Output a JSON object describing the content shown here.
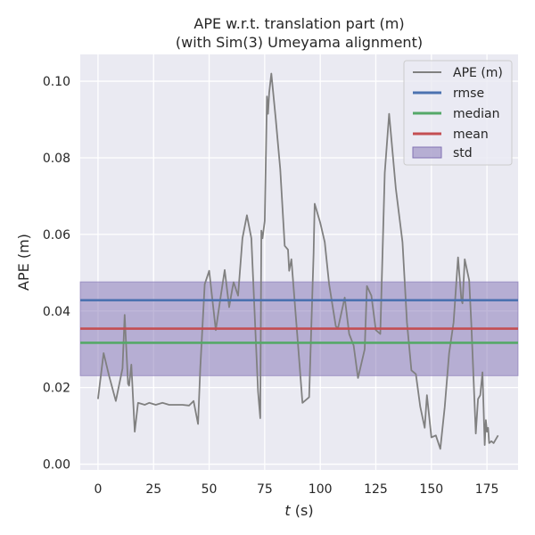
{
  "chart_data": {
    "type": "line",
    "title": [
      "APE w.r.t. translation part (m)",
      "(with Sim(3) Umeyama alignment)"
    ],
    "xlabel_var": "t",
    "xlabel_unit": " (s)",
    "ylabel": "APE (m)",
    "xlim": [
      -8,
      189
    ],
    "ylim": [
      -0.0015,
      0.107
    ],
    "xticks": [
      0,
      25,
      50,
      75,
      100,
      125,
      150,
      175
    ],
    "xtick_labels": [
      "0",
      "25",
      "50",
      "75",
      "100",
      "125",
      "150",
      "175"
    ],
    "yticks": [
      0.0,
      0.02,
      0.04,
      0.06,
      0.08,
      0.1
    ],
    "ytick_labels": [
      "0.00",
      "0.02",
      "0.04",
      "0.06",
      "0.08",
      "0.10"
    ],
    "grid": true,
    "legend_position": "top-right",
    "series": [
      {
        "name": "APE (m)",
        "color": "#808080",
        "x": [
          0,
          2.5,
          5,
          8,
          11,
          12,
          13.5,
          14,
          15,
          16.5,
          18,
          21,
          23,
          26,
          29,
          32,
          35,
          38,
          41,
          43,
          45,
          46,
          48,
          50,
          53,
          55,
          57,
          59,
          60.5,
          61,
          63,
          65,
          67,
          69,
          72,
          73,
          73.5,
          74,
          75,
          76,
          76.5,
          77,
          78,
          80,
          82,
          84,
          85.5,
          86,
          87,
          90,
          92,
          95,
          97,
          97.5,
          100,
          102,
          104,
          107,
          108,
          111,
          113,
          115,
          117,
          120,
          121,
          123,
          125,
          127,
          129,
          131,
          134,
          137,
          139,
          141,
          143,
          145,
          147,
          148,
          150,
          152,
          154,
          156,
          158,
          160,
          162,
          163.5,
          164,
          165,
          167,
          168,
          170,
          171,
          172,
          173,
          174,
          174.5,
          175,
          175.5,
          176,
          177,
          178,
          179,
          180
        ],
        "values": [
          0.017,
          0.029,
          0.023,
          0.0165,
          0.025,
          0.039,
          0.021,
          0.0205,
          0.026,
          0.0085,
          0.016,
          0.0155,
          0.016,
          0.0155,
          0.016,
          0.0155,
          0.0155,
          0.0155,
          0.0153,
          0.0165,
          0.0105,
          0.025,
          0.047,
          0.0505,
          0.035,
          0.043,
          0.0507,
          0.041,
          0.046,
          0.0475,
          0.044,
          0.059,
          0.065,
          0.059,
          0.019,
          0.012,
          0.061,
          0.059,
          0.0635,
          0.096,
          0.0915,
          0.097,
          0.102,
          0.09,
          0.077,
          0.057,
          0.056,
          0.0505,
          0.0535,
          0.031,
          0.016,
          0.0175,
          0.055,
          0.068,
          0.063,
          0.058,
          0.047,
          0.036,
          0.0355,
          0.0435,
          0.034,
          0.031,
          0.0225,
          0.03,
          0.0465,
          0.044,
          0.035,
          0.034,
          0.076,
          0.0915,
          0.072,
          0.058,
          0.037,
          0.0245,
          0.0235,
          0.015,
          0.0095,
          0.018,
          0.007,
          0.0075,
          0.004,
          0.015,
          0.029,
          0.037,
          0.054,
          0.043,
          0.042,
          0.0535,
          0.048,
          0.036,
          0.008,
          0.017,
          0.018,
          0.024,
          0.005,
          0.0115,
          0.0085,
          0.0095,
          0.0055,
          0.006,
          0.0055,
          0.0065,
          0.0075
        ]
      }
    ],
    "rmse": {
      "name": "rmse",
      "value": 0.0428,
      "color": "#4c72b0"
    },
    "median": {
      "name": "median",
      "value": 0.0317,
      "color": "#55a868"
    },
    "mean": {
      "name": "mean",
      "value": 0.0354,
      "color": "#c44e52"
    },
    "std": {
      "name": "std",
      "lower": 0.0231,
      "upper": 0.0476,
      "color": "#8172b3"
    }
  }
}
